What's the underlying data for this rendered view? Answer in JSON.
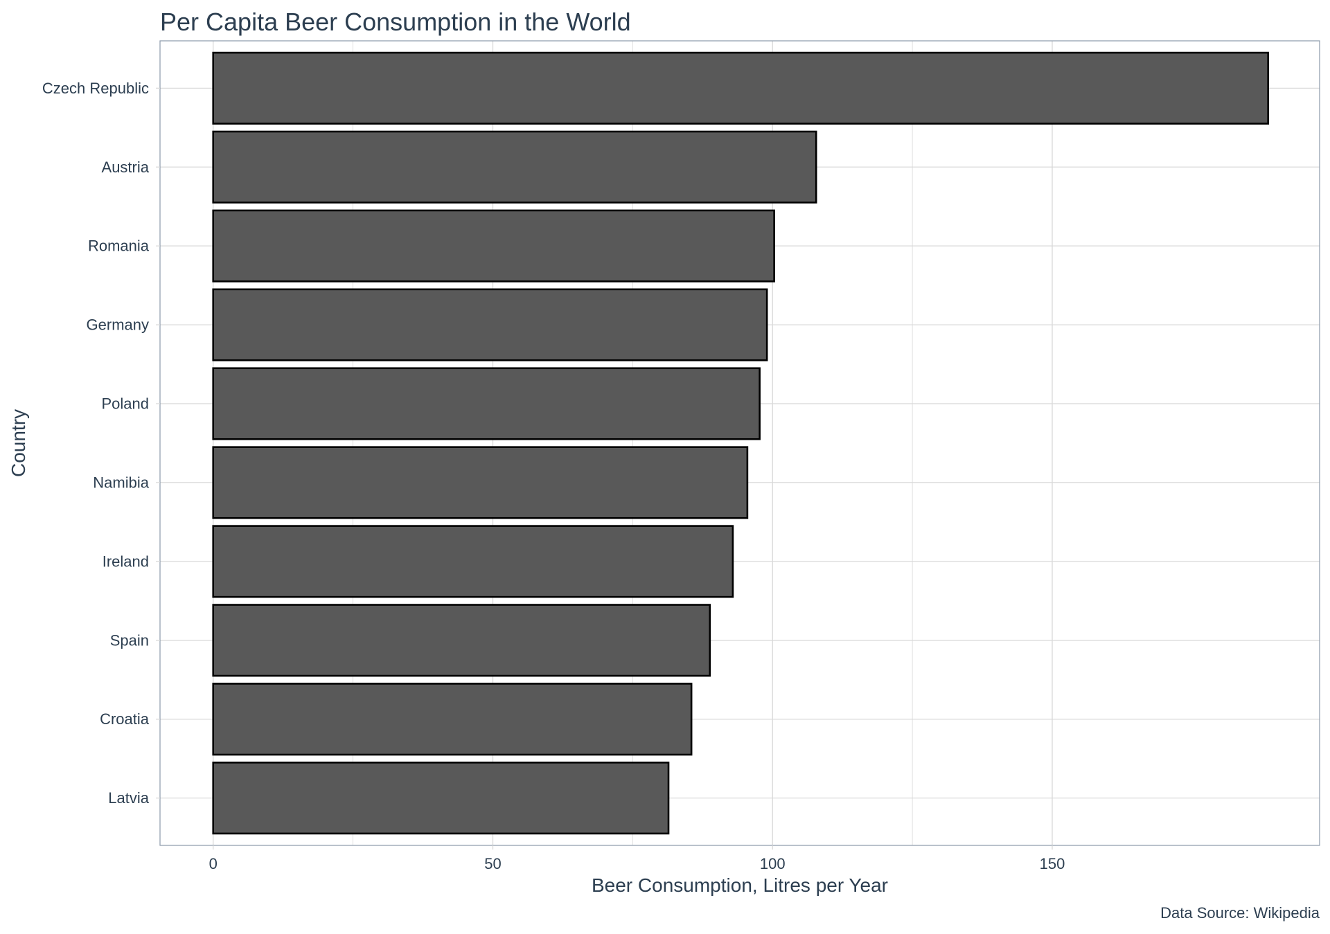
{
  "chart_data": {
    "type": "bar",
    "orientation": "horizontal",
    "title": "Per Capita Beer Consumption in the World",
    "xlabel": "Beer Consumption, Litres per Year",
    "ylabel": "Country",
    "caption": "Data Source: Wikipedia",
    "categories": [
      "Czech Republic",
      "Austria",
      "Romania",
      "Germany",
      "Poland",
      "Namibia",
      "Ireland",
      "Spain",
      "Croatia",
      "Latvia"
    ],
    "values": [
      188.6,
      107.8,
      100.3,
      99.0,
      97.7,
      95.5,
      92.9,
      88.8,
      85.5,
      81.4
    ],
    "xticks": [
      0,
      50,
      100,
      150
    ],
    "xlim": [
      -9.5,
      197.8
    ],
    "grid": true,
    "colors": {
      "bar_fill": "#595959",
      "bar_stroke": "#000000",
      "text": "#2c3e50",
      "grid": "#d9d9d9",
      "panel_border": "#8b9aab"
    }
  }
}
